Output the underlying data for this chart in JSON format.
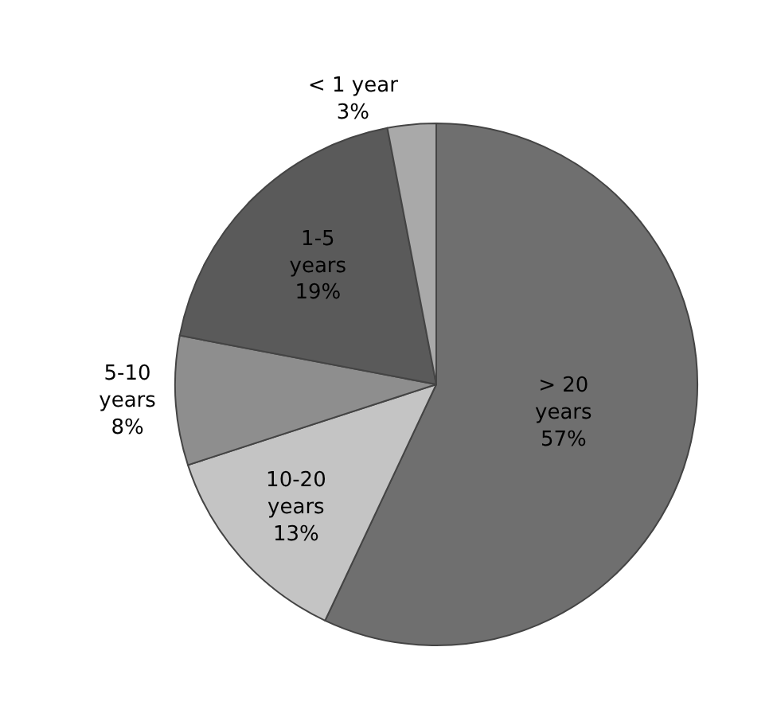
{
  "chart_data": {
    "type": "pie",
    "categories": [
      "> 20 years",
      "10-20 years",
      "5-10 years",
      "1-5 years",
      "< 1 year"
    ],
    "values": [
      57,
      13,
      8,
      19,
      3
    ],
    "value_labels": [
      "57%",
      "13%",
      "8%",
      "19%",
      "3%"
    ],
    "colors": [
      "#6f6f6f",
      "#c4c4c4",
      "#8e8e8e",
      "#5a5a5a",
      "#a9a9a9"
    ],
    "legend": false
  }
}
